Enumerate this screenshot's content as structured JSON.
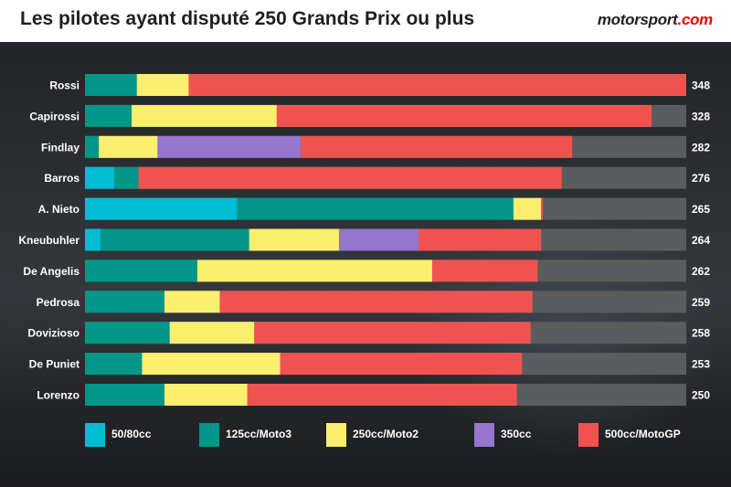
{
  "header": {
    "title": "Les pilotes ayant disputé 250 Grands Prix ou plus",
    "brand_prefix": "motorsport",
    "brand_suffix": ".com"
  },
  "colors": {
    "50/80cc": "#00bcd4",
    "125cc/Moto3": "#009688",
    "250cc/Moto2": "#fbef6e",
    "350cc": "#9575cd",
    "500cc/MotoGP": "#ef5350",
    "track": "#5a5c5e"
  },
  "chart_data": {
    "type": "bar",
    "orientation": "horizontal",
    "stacked": true,
    "title": "Les pilotes ayant disputé 250 Grands Prix ou plus",
    "xlim": [
      0,
      348
    ],
    "categories": [
      "Rossi",
      "Capirossi",
      "Findlay",
      "Barros",
      "A. Nieto",
      "Kneubuhler",
      "De Angelis",
      "Pedrosa",
      "Dovizioso",
      "De Puniet",
      "Lorenzo"
    ],
    "totals": [
      348,
      328,
      282,
      276,
      265,
      264,
      262,
      259,
      258,
      253,
      250
    ],
    "series": [
      {
        "name": "50/80cc",
        "values": [
          0,
          0,
          0,
          17,
          88,
          9,
          0,
          0,
          0,
          0,
          0
        ]
      },
      {
        "name": "125cc/Moto3",
        "values": [
          30,
          27,
          8,
          14,
          160,
          86,
          65,
          46,
          49,
          33,
          46
        ]
      },
      {
        "name": "250cc/Moto2",
        "values": [
          30,
          84,
          34,
          0,
          16,
          52,
          136,
          32,
          49,
          80,
          48
        ]
      },
      {
        "name": "350cc",
        "values": [
          0,
          0,
          83,
          0,
          0,
          46,
          0,
          0,
          0,
          0,
          0
        ]
      },
      {
        "name": "500cc/MotoGP",
        "values": [
          288,
          217,
          157,
          245,
          1,
          71,
          61,
          181,
          160,
          140,
          156
        ]
      }
    ],
    "legend_position": "bottom",
    "grid": false
  }
}
